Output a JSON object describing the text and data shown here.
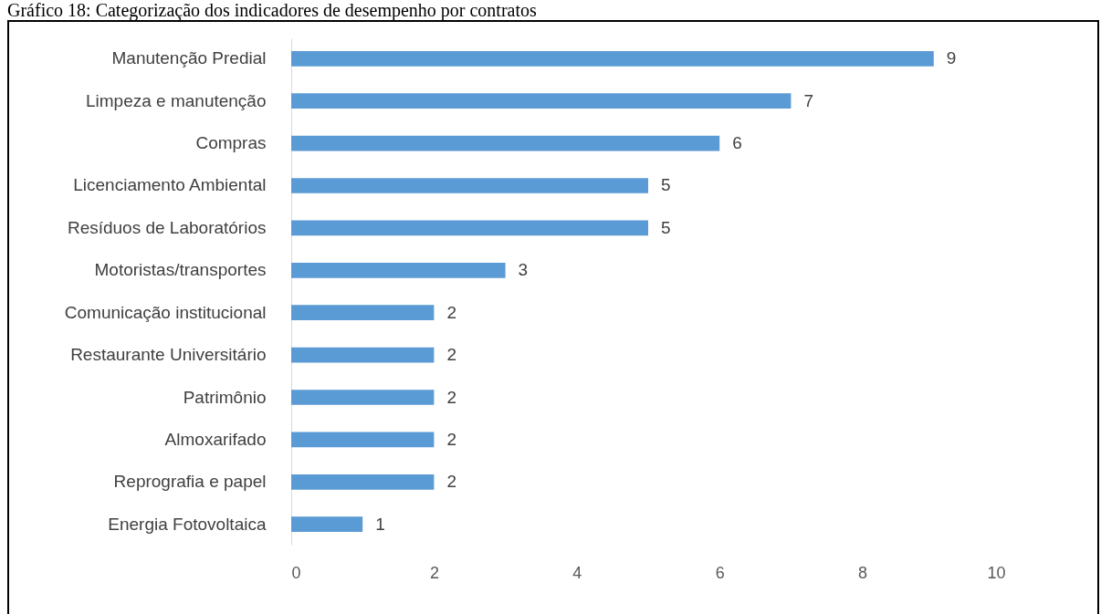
{
  "chart_data": {
    "type": "bar",
    "orientation": "horizontal",
    "title": "Gráfico 18: Categorização dos indicadores de desempenho por contratos",
    "categories": [
      "Manutenção Predial",
      "Limpeza e manutenção",
      "Compras",
      "Licenciamento Ambiental",
      "Resíduos de Laboratórios",
      "Motoristas/transportes",
      "Comunicação institucional",
      "Restaurante Universitário",
      "Patrimônio",
      "Almoxarifado",
      "Reprografia e papel",
      "Energia Fotovoltaica"
    ],
    "values": [
      9,
      7,
      6,
      5,
      5,
      3,
      2,
      2,
      2,
      2,
      2,
      1
    ],
    "color": "#5b9bd5",
    "xlim": [
      0,
      10
    ],
    "xticks": [
      0,
      2,
      4,
      6,
      8,
      10
    ],
    "data_labels": true,
    "grid": false
  }
}
